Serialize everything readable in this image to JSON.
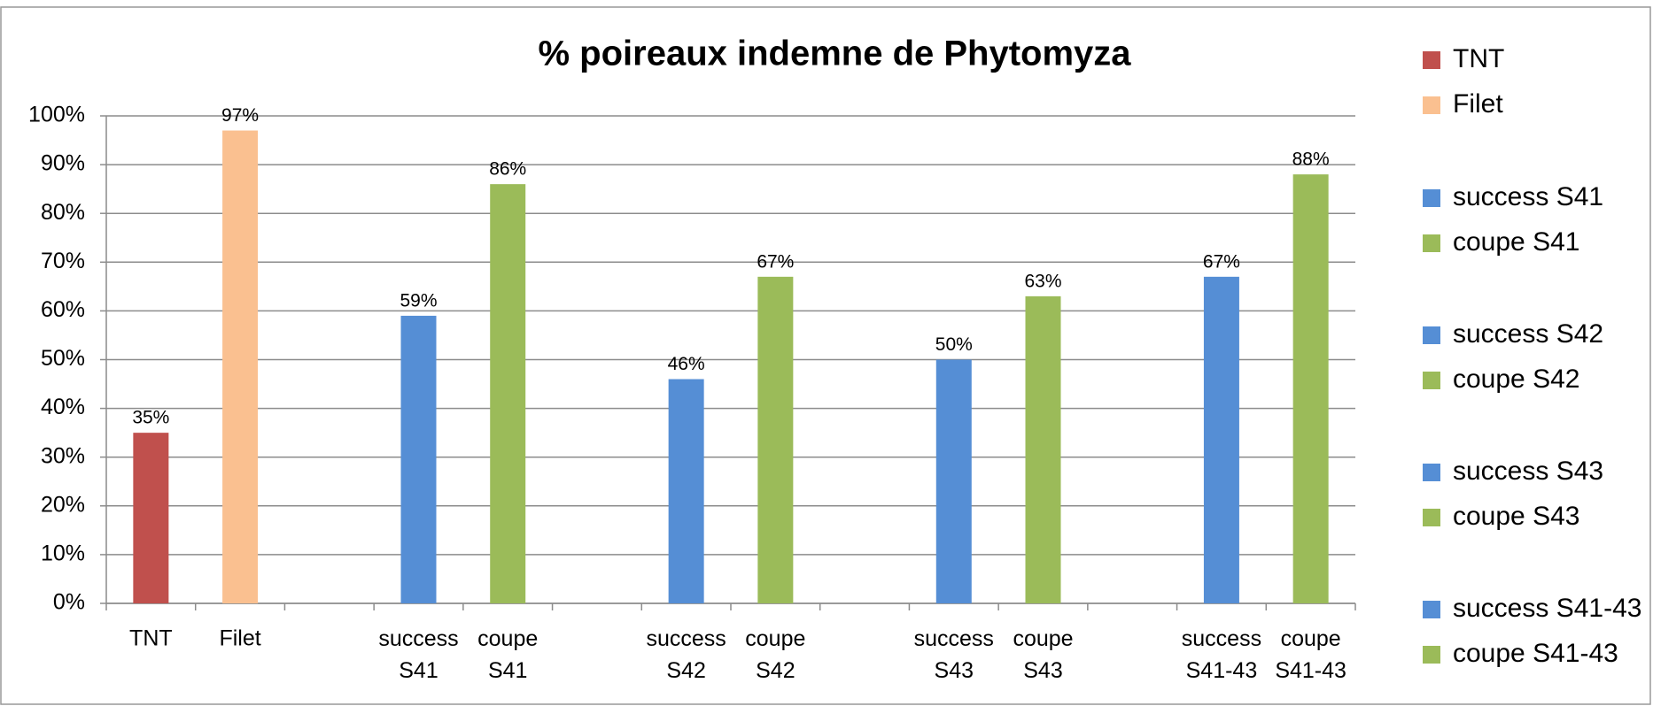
{
  "chart_data": {
    "type": "bar",
    "title": "% poireaux indemne de Phytomyza",
    "categories": [
      "TNT",
      "Filet",
      null,
      "success S41",
      "coupe S41",
      null,
      "success S42",
      "coupe S42",
      null,
      "success S43",
      "coupe S43",
      null,
      "success S41-43",
      "coupe S41-43"
    ],
    "series": [
      {
        "name": "TNT",
        "color": "#c0504d",
        "values": [
          35,
          null,
          null,
          null,
          null,
          null,
          null,
          null,
          null,
          null,
          null,
          null,
          null,
          null
        ],
        "value_labels": [
          "35%",
          null,
          null,
          null,
          null,
          null,
          null,
          null,
          null,
          null,
          null,
          null,
          null,
          null
        ]
      },
      {
        "name": "Filet",
        "color": "#fac090",
        "values": [
          null,
          97,
          null,
          null,
          null,
          null,
          null,
          null,
          null,
          null,
          null,
          null,
          null,
          null
        ],
        "value_labels": [
          null,
          "97%",
          null,
          null,
          null,
          null,
          null,
          null,
          null,
          null,
          null,
          null,
          null,
          null
        ]
      },
      {
        "name": "success S41",
        "color": "#558ed5",
        "values": [
          null,
          null,
          null,
          59,
          null,
          null,
          null,
          null,
          null,
          null,
          null,
          null,
          null,
          null
        ],
        "value_labels": [
          null,
          null,
          null,
          "59%",
          null,
          null,
          null,
          null,
          null,
          null,
          null,
          null,
          null,
          null
        ]
      },
      {
        "name": "coupe S41",
        "color": "#9bbb59",
        "values": [
          null,
          null,
          null,
          null,
          86,
          null,
          null,
          null,
          null,
          null,
          null,
          null,
          null,
          null
        ],
        "value_labels": [
          null,
          null,
          null,
          null,
          "86%",
          null,
          null,
          null,
          null,
          null,
          null,
          null,
          null,
          null
        ]
      },
      {
        "name": "success S42",
        "color": "#558ed5",
        "values": [
          null,
          null,
          null,
          null,
          null,
          null,
          46,
          null,
          null,
          null,
          null,
          null,
          null,
          null
        ],
        "value_labels": [
          null,
          null,
          null,
          null,
          null,
          null,
          "46%",
          null,
          null,
          null,
          null,
          null,
          null,
          null
        ]
      },
      {
        "name": "coupe S42",
        "color": "#9bbb59",
        "values": [
          null,
          null,
          null,
          null,
          null,
          null,
          null,
          67,
          null,
          null,
          null,
          null,
          null,
          null
        ],
        "value_labels": [
          null,
          null,
          null,
          null,
          null,
          null,
          null,
          "67%",
          null,
          null,
          null,
          null,
          null,
          null
        ]
      },
      {
        "name": "success S43",
        "color": "#558ed5",
        "values": [
          null,
          null,
          null,
          null,
          null,
          null,
          null,
          null,
          null,
          50,
          null,
          null,
          null,
          null
        ],
        "value_labels": [
          null,
          null,
          null,
          null,
          null,
          null,
          null,
          null,
          null,
          "50%",
          null,
          null,
          null,
          null
        ]
      },
      {
        "name": "coupe S43",
        "color": "#9bbb59",
        "values": [
          null,
          null,
          null,
          null,
          null,
          null,
          null,
          null,
          null,
          null,
          63,
          null,
          null,
          null
        ],
        "value_labels": [
          null,
          null,
          null,
          null,
          null,
          null,
          null,
          null,
          null,
          null,
          "63%",
          null,
          null,
          null
        ]
      },
      {
        "name": "success S41-43",
        "color": "#558ed5",
        "values": [
          null,
          null,
          null,
          null,
          null,
          null,
          null,
          null,
          null,
          null,
          null,
          null,
          67,
          null
        ],
        "value_labels": [
          null,
          null,
          null,
          null,
          null,
          null,
          null,
          null,
          null,
          null,
          null,
          null,
          "67%",
          null
        ]
      },
      {
        "name": "coupe S41-43",
        "color": "#9bbb59",
        "values": [
          null,
          null,
          null,
          null,
          null,
          null,
          null,
          null,
          null,
          null,
          null,
          null,
          null,
          88
        ],
        "value_labels": [
          null,
          null,
          null,
          null,
          null,
          null,
          null,
          null,
          null,
          null,
          null,
          null,
          null,
          "88%"
        ]
      }
    ],
    "ylim": [
      0,
      100
    ],
    "yticks": [
      {
        "value": 0,
        "label": "0%"
      },
      {
        "value": 10,
        "label": "10%"
      },
      {
        "value": 20,
        "label": "20%"
      },
      {
        "value": 30,
        "label": "30%"
      },
      {
        "value": 40,
        "label": "40%"
      },
      {
        "value": 50,
        "label": "50%"
      },
      {
        "value": 60,
        "label": "60%"
      },
      {
        "value": 70,
        "label": "70%"
      },
      {
        "value": 80,
        "label": "80%"
      },
      {
        "value": 90,
        "label": "90%"
      },
      {
        "value": 100,
        "label": "100%"
      }
    ],
    "grid": true,
    "legend": "right"
  }
}
